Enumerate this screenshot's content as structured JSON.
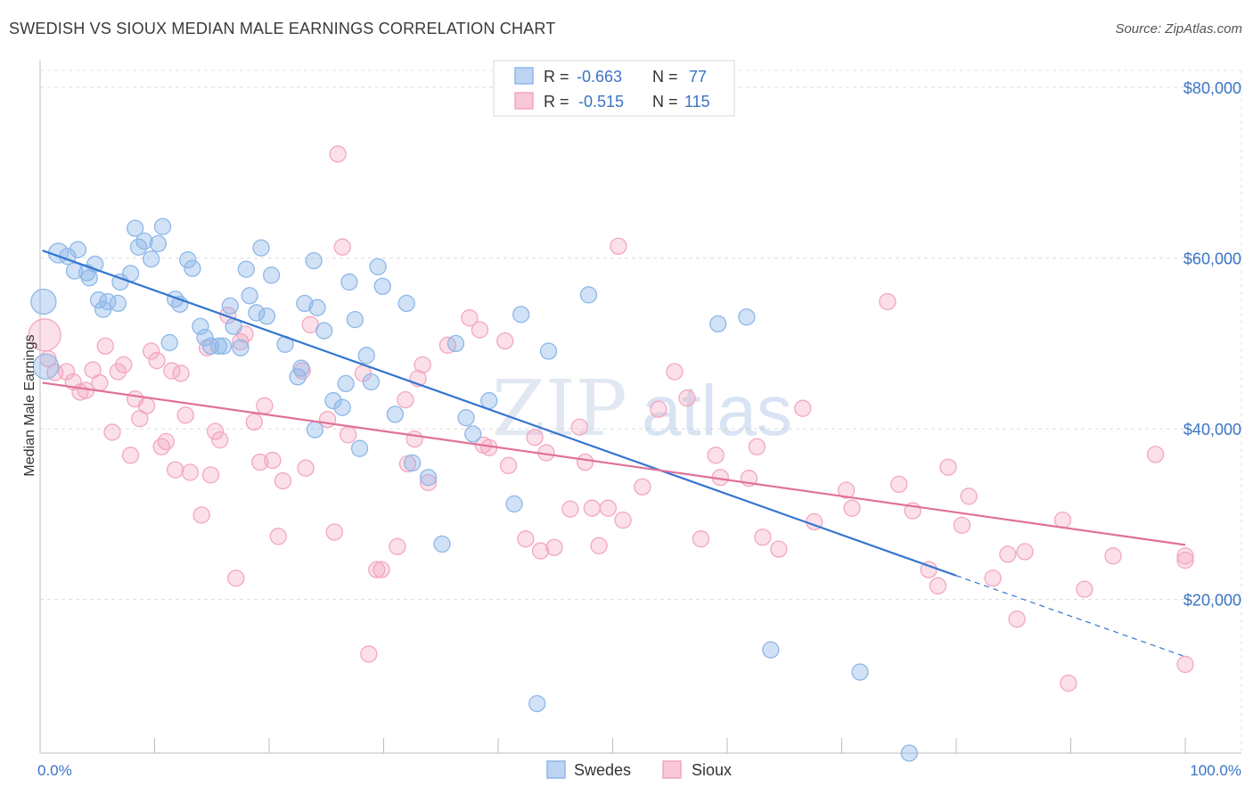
{
  "title": "SWEDISH VS SIOUX MEDIAN MALE EARNINGS CORRELATION CHART",
  "source": "Source: ZipAtlas.com",
  "watermark": {
    "zip": "ZIP",
    "atlas": "atlas"
  },
  "colors": {
    "blue": "#8db7e8",
    "blueLine": "#3575d0",
    "pink": "#f3a6c0",
    "pinkLine": "#e0719a",
    "axisText": "#3b74c4"
  },
  "legend": {
    "rows": [
      {
        "r_label": "R = ",
        "r_value": "-0.663",
        "n_label": "N = ",
        "n_value": "77"
      },
      {
        "r_label": "R = ",
        "r_value": "-0.515",
        "n_label": "N = ",
        "n_value": "115"
      }
    ]
  },
  "bottom_legend": [
    "Swedes",
    "Sioux"
  ],
  "chart_data": {
    "type": "scatter",
    "xlabel": "",
    "ylabel": "Median Male Earnings",
    "x_tick_labels": [
      "0.0%",
      "100.0%"
    ],
    "y_tick_labels": [
      "$20,000",
      "$40,000",
      "$60,000",
      "$80,000"
    ],
    "y_ticks": [
      20000,
      40000,
      60000,
      80000
    ],
    "xlim": [
      0,
      100
    ],
    "ylim": [
      2000,
      82000
    ],
    "grid": true,
    "series": [
      {
        "name": "Swedes",
        "trend": {
          "x0": 0.2,
          "y0": 60900,
          "x1": 80,
          "y1": 22800,
          "dash_to_x": 100,
          "dash_to_y": 13300
        },
        "points": [
          [
            0.3,
            54900
          ],
          [
            0.5,
            47300
          ],
          [
            1.6,
            60600
          ],
          [
            2.4,
            60200
          ],
          [
            3.3,
            61000
          ],
          [
            3.0,
            58500
          ],
          [
            4.1,
            58300
          ],
          [
            4.3,
            57700
          ],
          [
            4.8,
            59300
          ],
          [
            5.1,
            55100
          ],
          [
            5.5,
            54000
          ],
          [
            5.9,
            54900
          ],
          [
            6.8,
            54700
          ],
          [
            7.0,
            57200
          ],
          [
            7.9,
            58200
          ],
          [
            8.3,
            63500
          ],
          [
            8.6,
            61300
          ],
          [
            9.1,
            62000
          ],
          [
            9.7,
            59900
          ],
          [
            10.3,
            61700
          ],
          [
            10.7,
            63700
          ],
          [
            11.3,
            50100
          ],
          [
            11.8,
            55200
          ],
          [
            12.2,
            54600
          ],
          [
            12.9,
            59800
          ],
          [
            13.3,
            58800
          ],
          [
            14.0,
            52000
          ],
          [
            14.4,
            50700
          ],
          [
            14.9,
            49700
          ],
          [
            15.6,
            49700
          ],
          [
            16.0,
            49700
          ],
          [
            16.6,
            54400
          ],
          [
            16.9,
            52000
          ],
          [
            17.5,
            49500
          ],
          [
            18.0,
            58700
          ],
          [
            18.3,
            55600
          ],
          [
            18.9,
            53600
          ],
          [
            19.3,
            61200
          ],
          [
            19.8,
            53200
          ],
          [
            20.2,
            58000
          ],
          [
            21.4,
            49900
          ],
          [
            22.5,
            46100
          ],
          [
            22.8,
            47100
          ],
          [
            23.1,
            54700
          ],
          [
            23.9,
            59700
          ],
          [
            24.2,
            54200
          ],
          [
            24.0,
            39900
          ],
          [
            24.8,
            51500
          ],
          [
            25.6,
            43300
          ],
          [
            26.4,
            42500
          ],
          [
            26.7,
            45300
          ],
          [
            27.0,
            57200
          ],
          [
            27.5,
            52800
          ],
          [
            27.9,
            37700
          ],
          [
            28.5,
            48600
          ],
          [
            28.9,
            45500
          ],
          [
            29.5,
            59000
          ],
          [
            29.9,
            56700
          ],
          [
            31.0,
            41700
          ],
          [
            32.0,
            54700
          ],
          [
            32.5,
            36000
          ],
          [
            33.9,
            34300
          ],
          [
            35.1,
            26500
          ],
          [
            36.3,
            50000
          ],
          [
            37.2,
            41300
          ],
          [
            37.8,
            39400
          ],
          [
            39.2,
            43300
          ],
          [
            41.4,
            31200
          ],
          [
            42.0,
            53400
          ],
          [
            43.4,
            7800
          ],
          [
            44.4,
            49100
          ],
          [
            47.9,
            55700
          ],
          [
            59.2,
            52300
          ],
          [
            61.7,
            53100
          ],
          [
            63.8,
            14100
          ],
          [
            71.6,
            11500
          ],
          [
            75.9,
            2000
          ]
        ]
      },
      {
        "name": "Sioux",
        "trend": {
          "x0": 0.2,
          "y0": 45400,
          "x1": 100,
          "y1": 26400
        },
        "points": [
          [
            0.4,
            51000
          ],
          [
            0.7,
            48200
          ],
          [
            1.3,
            46600
          ],
          [
            2.3,
            46700
          ],
          [
            2.9,
            45500
          ],
          [
            3.5,
            44300
          ],
          [
            4.0,
            44500
          ],
          [
            4.6,
            46900
          ],
          [
            5.2,
            45400
          ],
          [
            5.7,
            49700
          ],
          [
            6.3,
            39600
          ],
          [
            6.8,
            46700
          ],
          [
            7.3,
            47500
          ],
          [
            7.9,
            36900
          ],
          [
            8.3,
            43500
          ],
          [
            8.7,
            41200
          ],
          [
            9.3,
            42700
          ],
          [
            9.7,
            49100
          ],
          [
            10.2,
            48000
          ],
          [
            10.6,
            37900
          ],
          [
            11.0,
            38500
          ],
          [
            11.5,
            46800
          ],
          [
            11.8,
            35200
          ],
          [
            12.3,
            46500
          ],
          [
            12.7,
            41600
          ],
          [
            13.1,
            34900
          ],
          [
            14.1,
            29900
          ],
          [
            14.6,
            49500
          ],
          [
            14.9,
            34600
          ],
          [
            15.3,
            39700
          ],
          [
            15.7,
            38700
          ],
          [
            16.4,
            53300
          ],
          [
            17.1,
            22500
          ],
          [
            17.5,
            50200
          ],
          [
            17.9,
            51100
          ],
          [
            18.7,
            40800
          ],
          [
            19.2,
            36100
          ],
          [
            19.6,
            42700
          ],
          [
            20.3,
            36300
          ],
          [
            20.8,
            27400
          ],
          [
            21.2,
            33900
          ],
          [
            22.9,
            46800
          ],
          [
            23.2,
            35400
          ],
          [
            23.6,
            52200
          ],
          [
            25.1,
            41100
          ],
          [
            25.7,
            27900
          ],
          [
            26.0,
            72200
          ],
          [
            26.4,
            61300
          ],
          [
            26.9,
            39300
          ],
          [
            28.2,
            46500
          ],
          [
            28.7,
            13600
          ],
          [
            29.4,
            23500
          ],
          [
            29.8,
            23500
          ],
          [
            31.2,
            26200
          ],
          [
            31.9,
            43400
          ],
          [
            32.1,
            35900
          ],
          [
            32.7,
            38800
          ],
          [
            33.0,
            45900
          ],
          [
            33.4,
            47500
          ],
          [
            33.9,
            33700
          ],
          [
            35.6,
            49800
          ],
          [
            37.5,
            53000
          ],
          [
            38.4,
            51600
          ],
          [
            38.7,
            38100
          ],
          [
            39.2,
            37800
          ],
          [
            40.6,
            50300
          ],
          [
            40.9,
            35700
          ],
          [
            42.4,
            27100
          ],
          [
            43.2,
            39000
          ],
          [
            43.7,
            25700
          ],
          [
            44.2,
            37200
          ],
          [
            44.9,
            26100
          ],
          [
            46.3,
            30600
          ],
          [
            47.1,
            40200
          ],
          [
            47.6,
            36100
          ],
          [
            48.2,
            30700
          ],
          [
            48.8,
            26300
          ],
          [
            49.6,
            30700
          ],
          [
            50.5,
            61400
          ],
          [
            50.9,
            29300
          ],
          [
            52.6,
            33200
          ],
          [
            54.0,
            42300
          ],
          [
            55.4,
            46700
          ],
          [
            56.5,
            43600
          ],
          [
            57.7,
            27100
          ],
          [
            59.0,
            36900
          ],
          [
            59.4,
            34300
          ],
          [
            61.9,
            34200
          ],
          [
            62.6,
            37900
          ],
          [
            63.1,
            27300
          ],
          [
            64.5,
            25900
          ],
          [
            66.6,
            42400
          ],
          [
            67.6,
            29100
          ],
          [
            70.4,
            32800
          ],
          [
            70.9,
            30700
          ],
          [
            74.0,
            54900
          ],
          [
            75.0,
            33500
          ],
          [
            76.2,
            30400
          ],
          [
            77.6,
            23500
          ],
          [
            78.4,
            21600
          ],
          [
            79.3,
            35500
          ],
          [
            80.5,
            28700
          ],
          [
            81.1,
            32100
          ],
          [
            83.2,
            22500
          ],
          [
            84.5,
            25300
          ],
          [
            85.3,
            17700
          ],
          [
            86.0,
            25600
          ],
          [
            89.3,
            29300
          ],
          [
            89.8,
            10200
          ],
          [
            91.2,
            21200
          ],
          [
            93.7,
            25100
          ],
          [
            97.4,
            37000
          ],
          [
            100.0,
            12400
          ],
          [
            100.0,
            25100
          ],
          [
            100.0,
            24600
          ]
        ]
      }
    ]
  }
}
